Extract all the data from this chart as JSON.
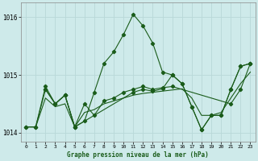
{
  "title": "Graphe pression niveau de la mer (hPa)",
  "bg_color": "#ceeaea",
  "grid_color": "#b8d8d8",
  "line_color": "#1a5c1a",
  "marker_color": "#1a5c1a",
  "xlim": [
    -0.5,
    23.5
  ],
  "ylim": [
    1013.85,
    1016.25
  ],
  "yticks": [
    1014,
    1015,
    1016
  ],
  "xticks": [
    0,
    1,
    2,
    3,
    4,
    5,
    6,
    7,
    8,
    9,
    10,
    11,
    12,
    13,
    14,
    15,
    16,
    17,
    18,
    19,
    20,
    21,
    22,
    23
  ],
  "series1_x": [
    0,
    1,
    2,
    3,
    4,
    5,
    6,
    7,
    8,
    9,
    10,
    11,
    12,
    13,
    14,
    15,
    16,
    17,
    18,
    19,
    20,
    21,
    22,
    23
  ],
  "series1_y": [
    1014.1,
    1014.1,
    1014.8,
    1014.5,
    1014.65,
    1014.1,
    1014.2,
    1014.7,
    1015.2,
    1015.4,
    1015.7,
    1016.05,
    1015.85,
    1015.55,
    1015.05,
    1015.0,
    1014.85,
    1014.45,
    1014.05,
    1014.3,
    1014.3,
    1014.75,
    1015.15,
    1015.2
  ],
  "series2_x": [
    2,
    3,
    4,
    5,
    6,
    7,
    8,
    9,
    10,
    11,
    12,
    13,
    14,
    15,
    21,
    22,
    23
  ],
  "series2_y": [
    1014.75,
    1014.5,
    1014.65,
    1014.1,
    1014.5,
    1014.3,
    1014.55,
    1014.6,
    1014.7,
    1014.75,
    1014.8,
    1014.75,
    1014.78,
    1014.8,
    1014.5,
    1014.75,
    1015.2
  ],
  "series3_x": [
    0,
    1,
    2,
    3,
    4,
    5,
    11,
    12,
    13,
    14,
    15,
    16,
    17,
    18,
    19,
    20,
    21,
    22,
    23
  ],
  "series3_y": [
    1014.1,
    1014.1,
    1014.75,
    1014.5,
    1014.65,
    1014.1,
    1014.7,
    1014.75,
    1014.72,
    1014.76,
    1015.0,
    1014.85,
    1014.45,
    1014.05,
    1014.3,
    1014.3,
    1014.75,
    1015.15,
    1015.2
  ],
  "series4_x": [
    0,
    1,
    2,
    3,
    4,
    5,
    6,
    7,
    8,
    9,
    10,
    11,
    12,
    13,
    14,
    15,
    16,
    17,
    18,
    19,
    20,
    21,
    22,
    23
  ],
  "series4_y": [
    1014.1,
    1014.1,
    1014.6,
    1014.45,
    1014.5,
    1014.1,
    1014.35,
    1014.4,
    1014.5,
    1014.55,
    1014.6,
    1014.65,
    1014.68,
    1014.7,
    1014.72,
    1014.74,
    1014.76,
    1014.6,
    1014.3,
    1014.3,
    1014.35,
    1014.6,
    1014.85,
    1015.05
  ]
}
